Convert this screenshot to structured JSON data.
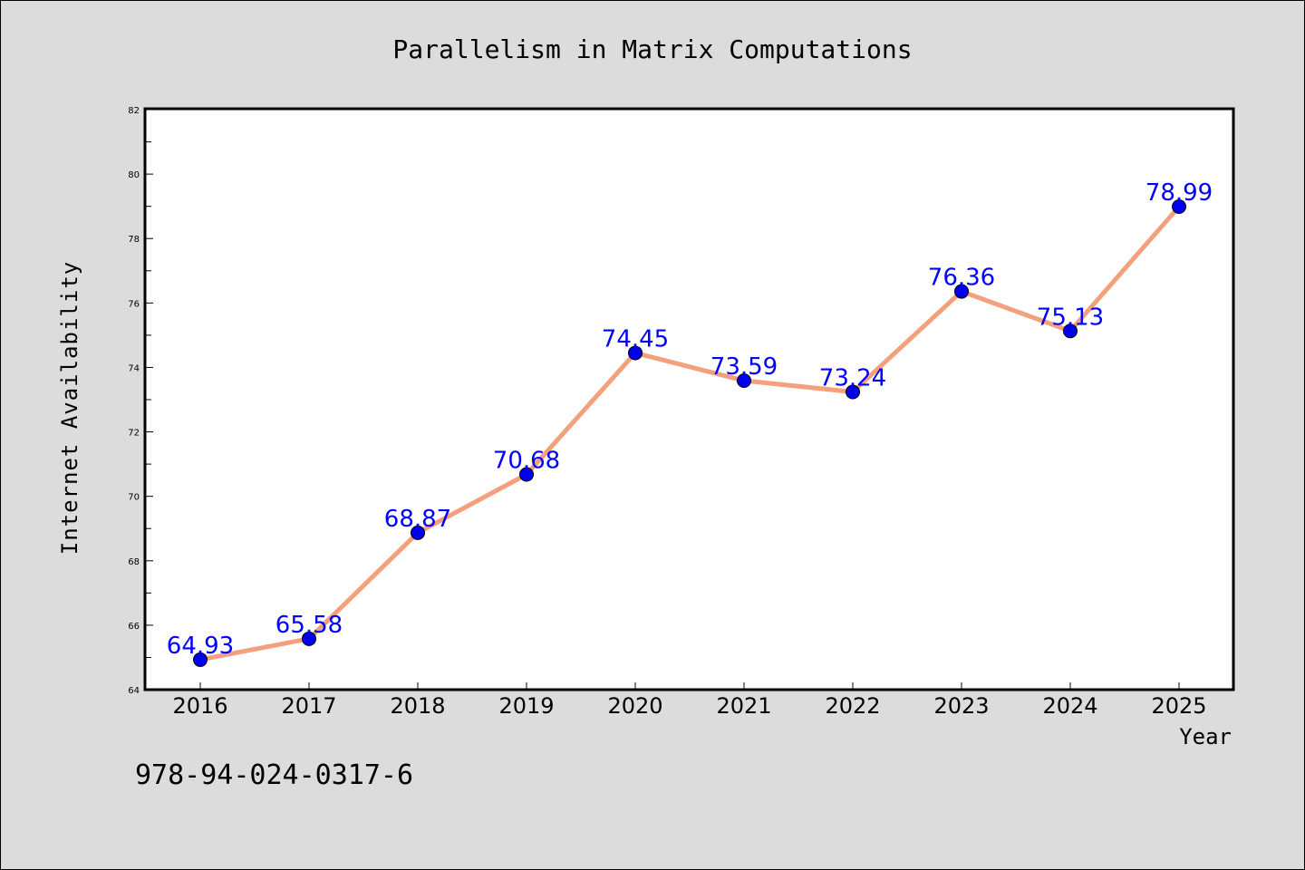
{
  "chart_data": {
    "type": "line",
    "title": "Parallelism in Matrix Computations",
    "xlabel": "Year",
    "ylabel": "Internet Availability",
    "categories": [
      "2016",
      "2017",
      "2018",
      "2019",
      "2020",
      "2021",
      "2022",
      "2023",
      "2024",
      "2025"
    ],
    "series": [
      {
        "values": [
          64.93,
          65.58,
          68.87,
          70.68,
          74.45,
          73.59,
          73.24,
          76.36,
          75.13,
          78.99
        ],
        "labels": [
          "64.93",
          "65.58",
          "68.87",
          "70.68",
          "74.45",
          "73.59",
          "73.24",
          "76.36",
          "75.13",
          "78.99"
        ]
      }
    ],
    "ylim": [
      64,
      82
    ],
    "yticks": [
      "64",
      "66",
      "68",
      "70",
      "72",
      "74",
      "76",
      "78",
      "80",
      "82"
    ],
    "grid": false,
    "legend": "none",
    "colors": {
      "line": "#f4a07c",
      "marker": "#0000ee",
      "label": "#0000ff",
      "background": "#dcdcdc",
      "plot_background": "#ffffff"
    }
  },
  "footer": {
    "isbn": "978-94-024-0317-6"
  }
}
